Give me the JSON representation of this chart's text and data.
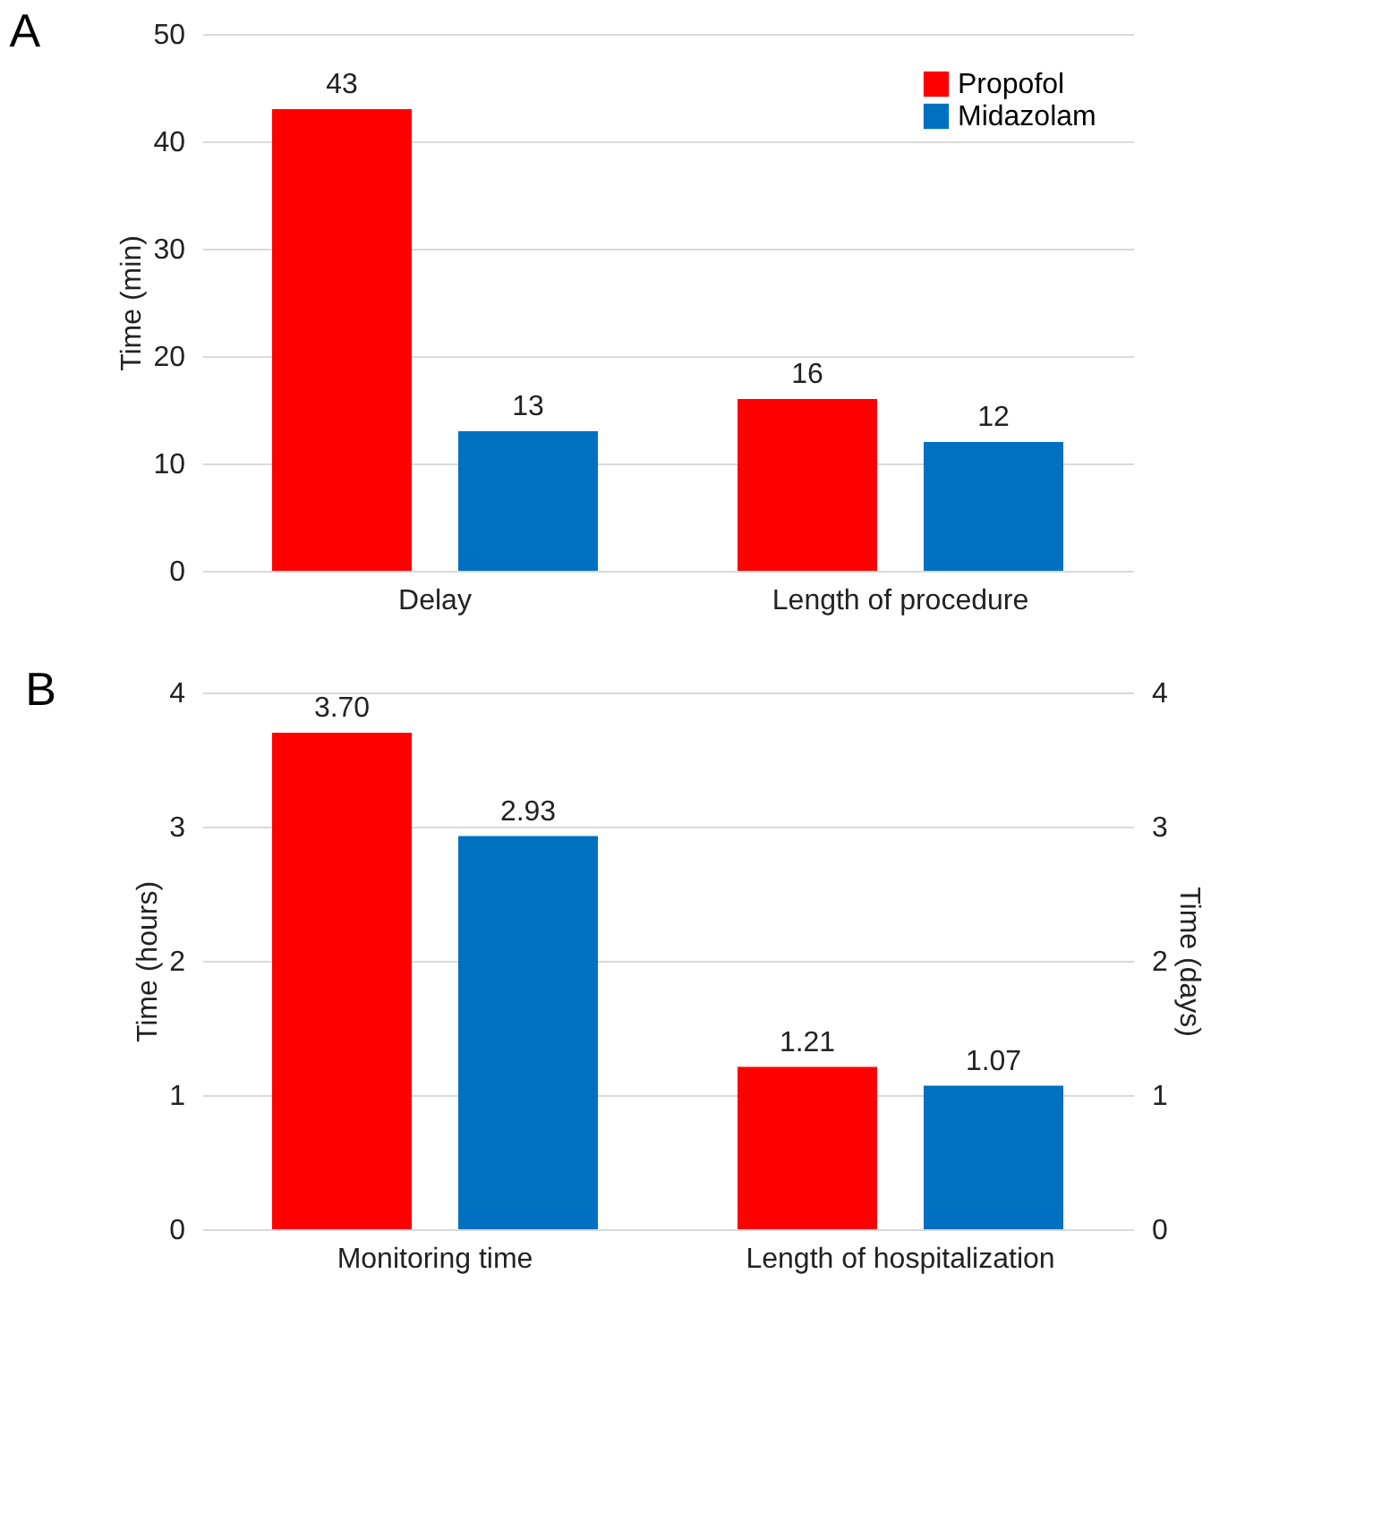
{
  "chart_data": [
    {
      "type": "bar",
      "title": "A",
      "ylabel": "Time (min)",
      "categories": [
        "Delay",
        "Length of procedure"
      ],
      "series": [
        {
          "name": "Propofol",
          "color": "#ff0000",
          "values": [
            43,
            16
          ]
        },
        {
          "name": "Midazolam",
          "color": "#0070c0",
          "values": [
            13,
            12
          ]
        }
      ],
      "ylim": [
        0,
        50
      ],
      "yticks": [
        0,
        10,
        20,
        30,
        40,
        50
      ],
      "grid": "y",
      "legend": "top right",
      "data_labels": true
    },
    {
      "type": "bar",
      "title": "B",
      "ylabel": "Time (hours)",
      "y2label": "Time (days)",
      "categories": [
        "Monitoring time",
        "Length of hospitalization"
      ],
      "series": [
        {
          "name": "Propofol",
          "color": "#ff0000",
          "values": [
            3.7,
            1.21
          ],
          "value_labels": [
            "3.70",
            "1.21"
          ]
        },
        {
          "name": "Midazolam",
          "color": "#0070c0",
          "values": [
            2.93,
            1.07
          ],
          "value_labels": [
            "2.93",
            "1.07"
          ]
        }
      ],
      "ylim": [
        0,
        4
      ],
      "yticks": [
        0,
        1,
        2,
        3,
        4
      ],
      "y2lim": [
        0,
        4
      ],
      "y2ticks": [
        0,
        1,
        2,
        3,
        4
      ],
      "grid": "y",
      "legend": "top right"
    }
  ]
}
